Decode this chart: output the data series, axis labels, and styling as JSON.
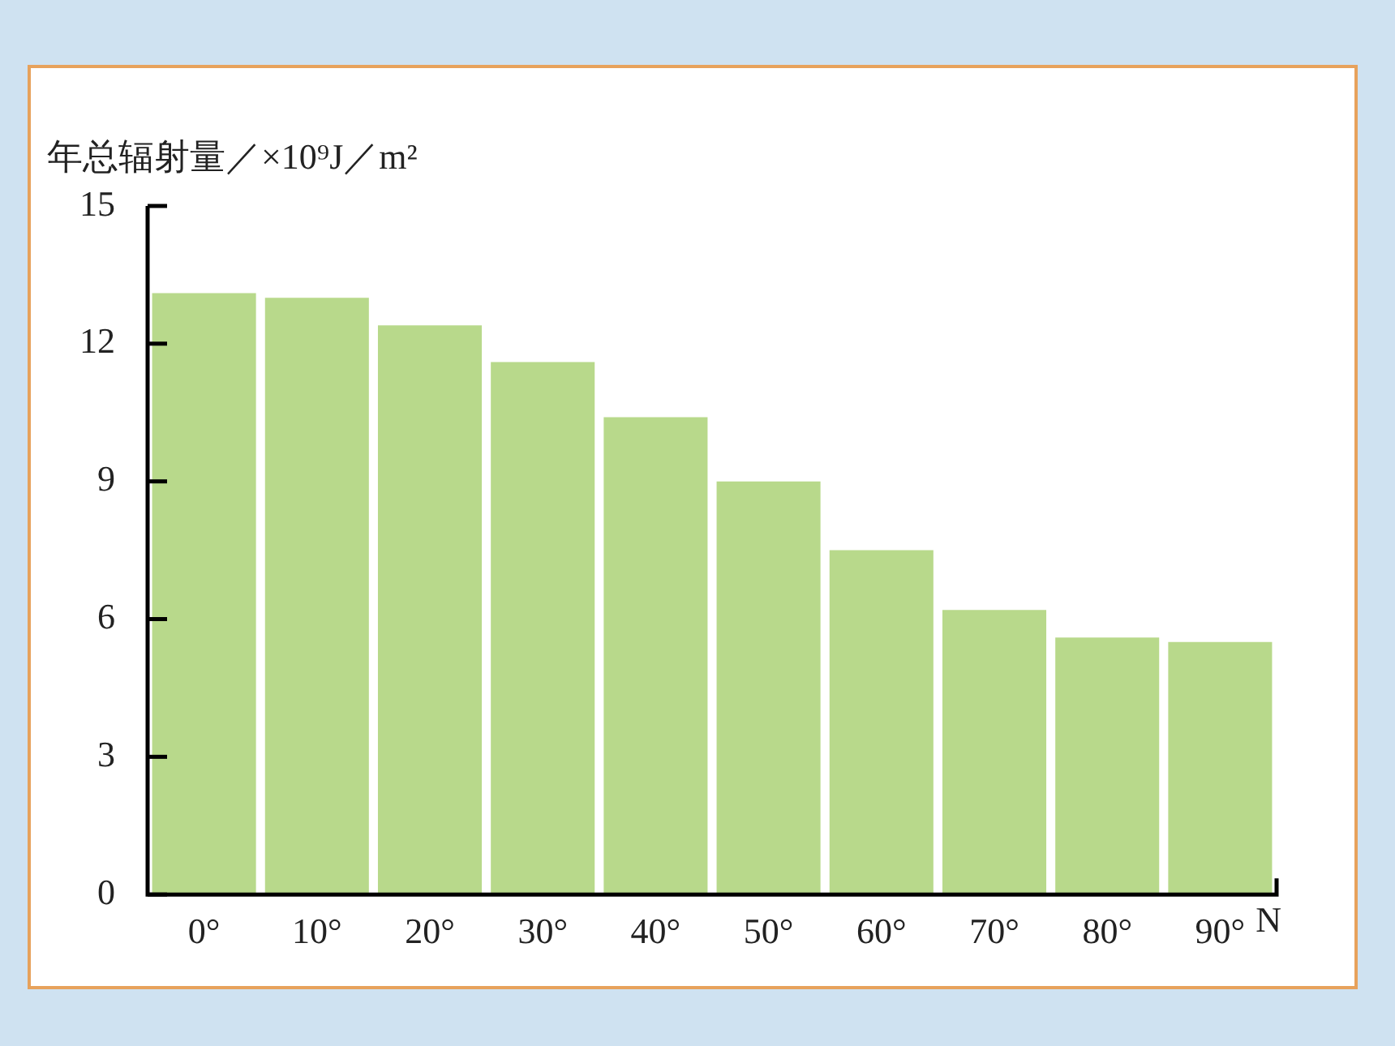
{
  "chart_data": {
    "type": "bar",
    "ylabel": "年总辐射量／×10⁹J／m²",
    "xlabel": "N",
    "categories": [
      "0°",
      "10°",
      "20°",
      "30°",
      "40°",
      "50°",
      "60°",
      "70°",
      "80°",
      "90°"
    ],
    "values": [
      13.1,
      13.0,
      12.4,
      11.6,
      10.4,
      9.0,
      7.5,
      6.2,
      5.6,
      5.5
    ],
    "color": "#b8d98b",
    "ylim": [
      0,
      15
    ],
    "yticks": [
      0,
      3,
      6,
      9,
      12,
      15
    ]
  }
}
